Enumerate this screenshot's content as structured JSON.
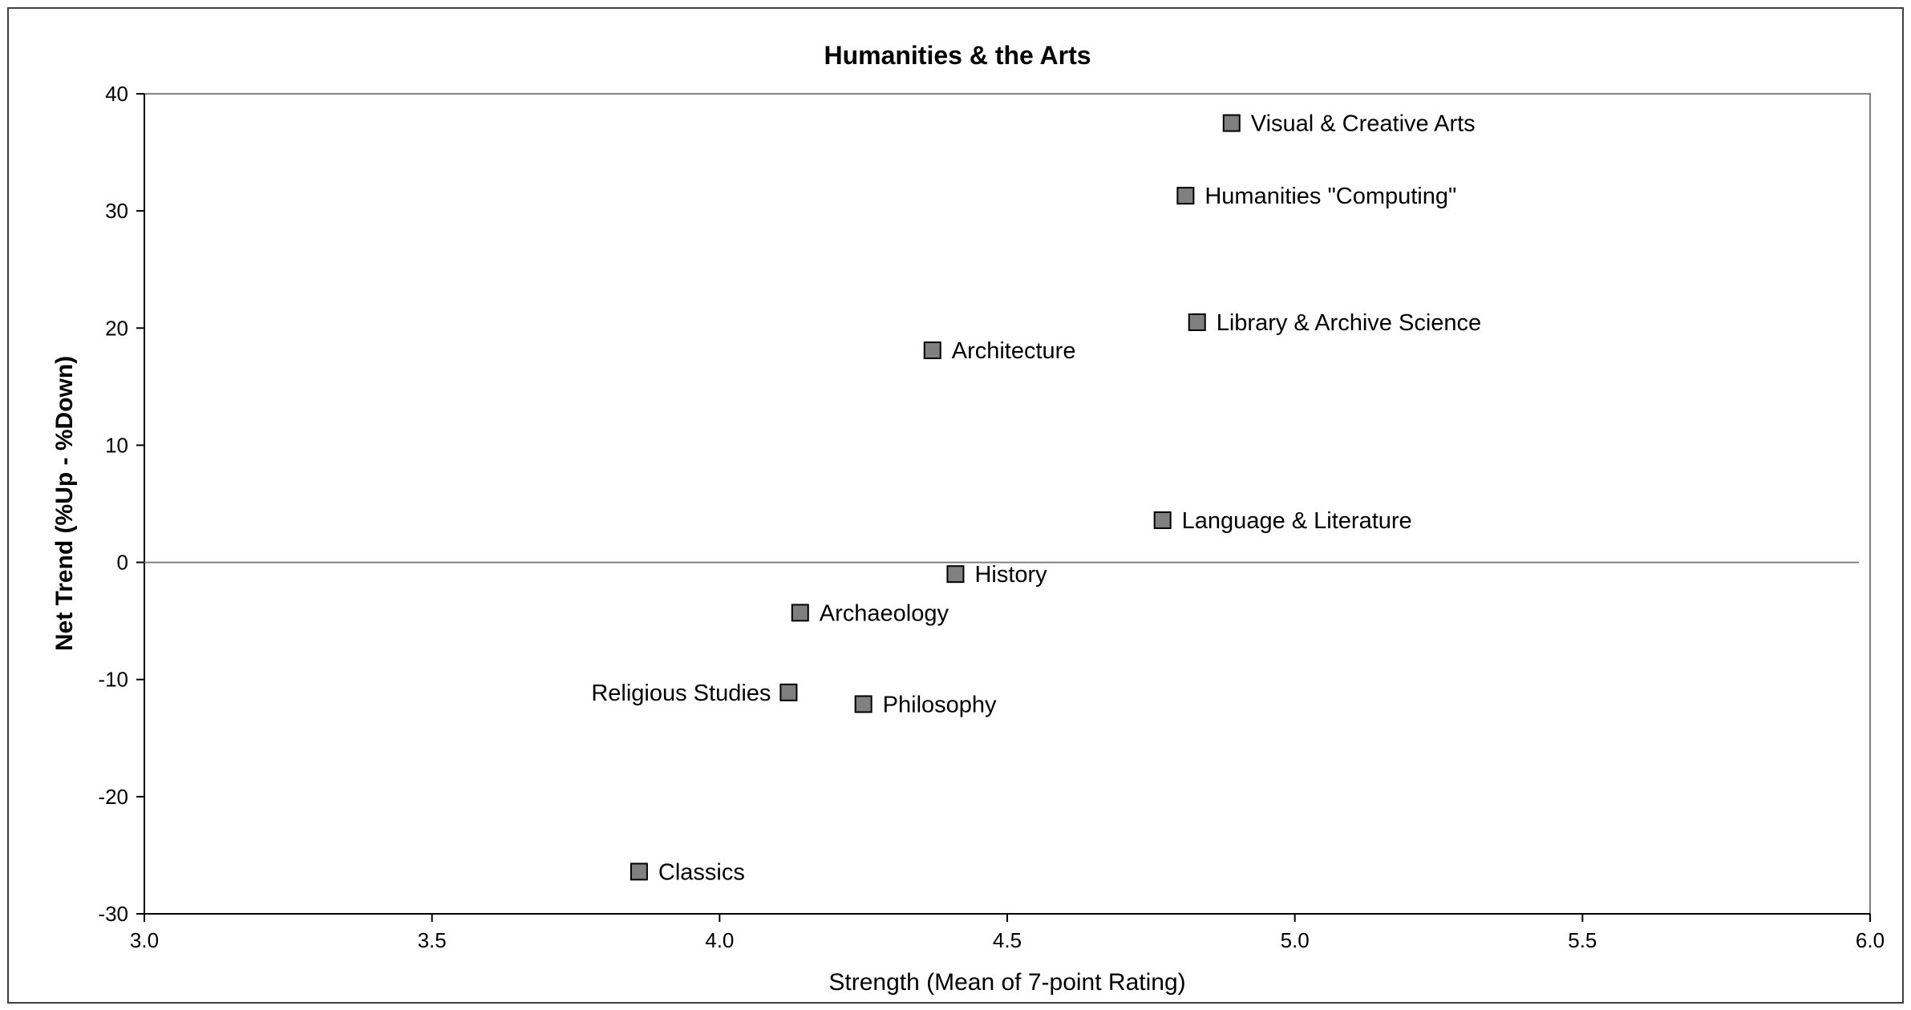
{
  "chart_data": {
    "type": "scatter",
    "title": "Humanities & the Arts",
    "xlabel": "Strength (Mean of 7-point Rating)",
    "ylabel": "Net Trend (%Up - %Down)",
    "xlim": [
      3.0,
      6.0
    ],
    "ylim": [
      -30,
      40
    ],
    "xticks": [
      "3.0",
      "3.5",
      "4.0",
      "4.5",
      "5.0",
      "5.5",
      "6.0"
    ],
    "yticks": [
      "40",
      "30",
      "20",
      "10",
      "0",
      "-10",
      "-20",
      "-30"
    ],
    "grid": false,
    "marker_color": "#808080",
    "points": [
      {
        "label": "Visual & Creative Arts",
        "x": 4.89,
        "y": 37.5,
        "label_side": "right"
      },
      {
        "label": "Humanities \"Computing\"",
        "x": 4.81,
        "y": 31.3,
        "label_side": "right"
      },
      {
        "label": "Library & Archive Science",
        "x": 4.83,
        "y": 20.5,
        "label_side": "right"
      },
      {
        "label": "Architecture",
        "x": 4.37,
        "y": 18.1,
        "label_side": "right"
      },
      {
        "label": "Language & Literature",
        "x": 4.77,
        "y": 3.6,
        "label_side": "right"
      },
      {
        "label": "History",
        "x": 4.41,
        "y": -1.0,
        "label_side": "right"
      },
      {
        "label": "Archaeology",
        "x": 4.14,
        "y": -4.3,
        "label_side": "right"
      },
      {
        "label": "Religious Studies",
        "x": 4.12,
        "y": -11.1,
        "label_side": "left"
      },
      {
        "label": "Philosophy",
        "x": 4.25,
        "y": -12.1,
        "label_side": "right"
      },
      {
        "label": "Classics",
        "x": 3.86,
        "y": -26.4,
        "label_side": "right"
      }
    ]
  }
}
